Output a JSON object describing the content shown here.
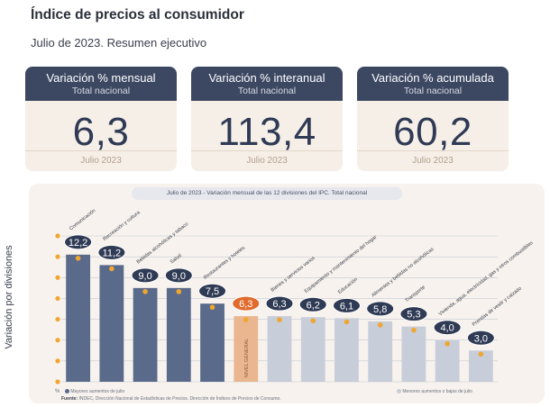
{
  "header": {
    "title": "Índice de precios al consumidor",
    "subtitle": "Julio de 2023. Resumen ejecutivo"
  },
  "cards": [
    {
      "title": "Variación % mensual",
      "subtitle": "Total nacional",
      "value": "6,3",
      "period": "Julio 2023"
    },
    {
      "title": "Variación % interanual",
      "subtitle": "Total nacional",
      "value": "113,4",
      "period": "Julio 2023"
    },
    {
      "title": "Variación % acumulada",
      "subtitle": "Total nacional",
      "value": "60,2",
      "period": "Julio 2023"
    }
  ],
  "chart_data": {
    "type": "bar",
    "title": "Julio de 2023 - Variación mensual de las 12 divisiones del IPC. Total nacional",
    "ylabel": "Variación por divisiones",
    "y_unit": "%",
    "ylim": [
      0,
      14
    ],
    "categories": [
      "Comunicación",
      "Recreación y cultura",
      "Bebidas alcohólicas y tabaco",
      "Salud",
      "Restaurantes y hoteles",
      "NIVEL GENERAL",
      "Bienes y servicios varios",
      "Equipamiento y mantenimiento del hogar",
      "Educación",
      "Alimentos y bebidas no alcohólicas",
      "Transporte",
      "Vivienda, agua, electricidad, gas y otros combustibles",
      "Prendas de vestir y calzado"
    ],
    "values": [
      12.2,
      11.2,
      9.0,
      9.0,
      7.5,
      6.3,
      6.3,
      6.2,
      6.1,
      5.8,
      5.3,
      4.0,
      3.0
    ],
    "value_labels": [
      "12,2",
      "11,2",
      "9,0",
      "9,0",
      "7,5",
      "6,3",
      "6,3",
      "6,2",
      "6,1",
      "5,8",
      "5,3",
      "4,0",
      "3,0"
    ],
    "groups": [
      "mayor",
      "mayor",
      "mayor",
      "mayor",
      "mayor",
      "general",
      "menor",
      "menor",
      "menor",
      "menor",
      "menor",
      "menor",
      "menor"
    ],
    "colors": {
      "mayor": "#5a6a8a",
      "general": "#e9b690",
      "menor": "#c7cdd9",
      "dot": "#f0a630",
      "grid": "#c5c9d3",
      "bubble": "#2f3a55"
    },
    "legend": {
      "mayor": "Mayores aumentos de julio",
      "menor": "Menores aumentos o bajas de julio"
    },
    "source_label": "Fuente:",
    "source": "INDEC, Dirección Nacional de Estadísticas de Precios. Dirección de Índices de Precios de Consumo.",
    "grid": true
  }
}
